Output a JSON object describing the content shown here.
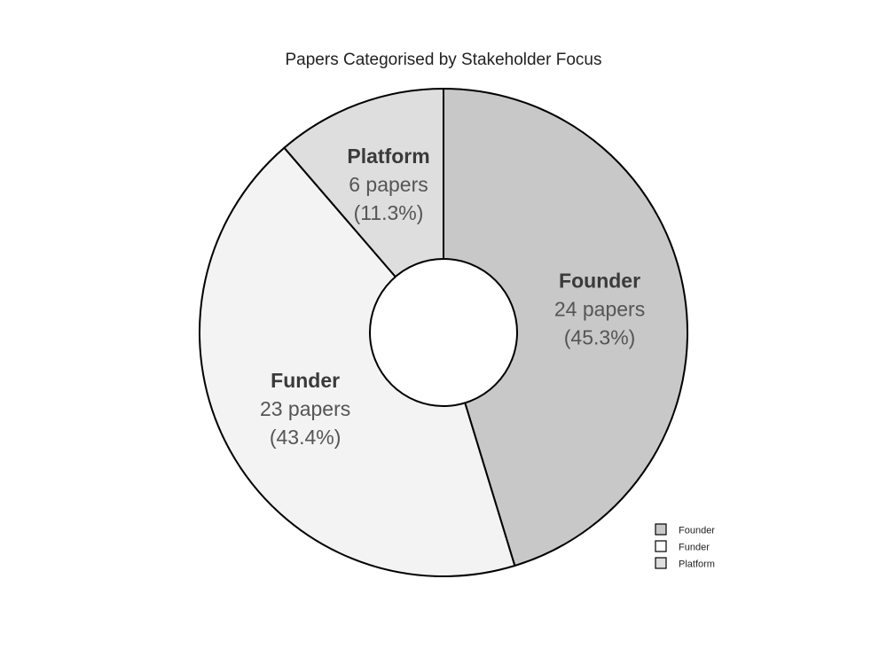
{
  "chart_data": {
    "type": "pie",
    "title": "Papers Categorised by Stakeholder Focus",
    "donut": true,
    "categories": [
      "Founder",
      "Funder",
      "Platform"
    ],
    "values": [
      24,
      23,
      6
    ],
    "value_labels": [
      "24 papers",
      "23 papers",
      "6 papers"
    ],
    "percent_labels": [
      "(45.3%)",
      "(43.4%)",
      "(11.3%)"
    ],
    "colors": [
      "#c8c8c8",
      "#f3f3f3",
      "#dedede"
    ],
    "legend": {
      "position": "bottom-right",
      "entries": [
        "Founder",
        "Funder",
        "Platform"
      ],
      "colors": [
        "#c8c8c8",
        "#ffffff",
        "#dedede"
      ]
    }
  }
}
